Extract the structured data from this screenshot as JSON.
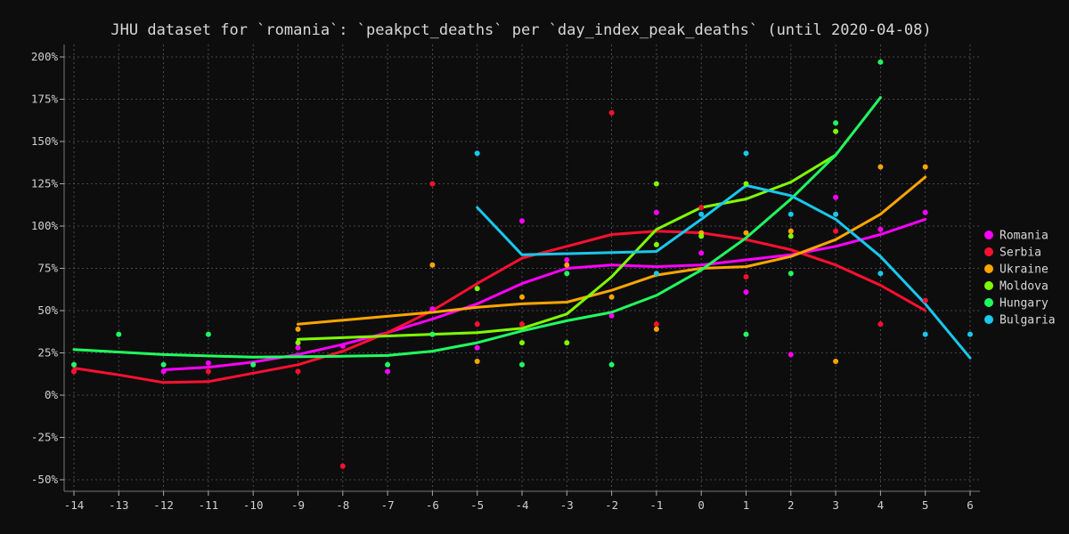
{
  "chart_data": {
    "type": "line",
    "title": "JHU dataset for `romania`: `peakpct_deaths` per `day_index_peak_deaths` (until 2020-04-08)",
    "xlabel": "",
    "ylabel": "",
    "xlim": [
      -14.2,
      6.2
    ],
    "ylim": [
      -55,
      205
    ],
    "x_ticks": [
      -14,
      -13,
      -12,
      -11,
      -10,
      -9,
      -8,
      -7,
      -6,
      -5,
      -4,
      -3,
      -2,
      -1,
      0,
      1,
      2,
      3,
      4,
      5,
      6
    ],
    "y_ticks": [
      -50,
      -25,
      0,
      25,
      50,
      75,
      100,
      125,
      150,
      175,
      200
    ],
    "y_tick_suffix": "%",
    "grid": true,
    "legend_position": "right",
    "series": [
      {
        "name": "Romania",
        "color": "#ff00ff",
        "points": [
          [
            -14,
            14
          ],
          [
            -12,
            14
          ],
          [
            -11,
            19
          ],
          [
            -9,
            28
          ],
          [
            -8,
            29
          ],
          [
            -7,
            14
          ],
          [
            -6,
            51
          ],
          [
            -5,
            28
          ],
          [
            -4,
            103
          ],
          [
            -3,
            80
          ],
          [
            -2,
            47
          ],
          [
            -1,
            108
          ],
          [
            0,
            84
          ],
          [
            1,
            61
          ],
          [
            2,
            24
          ],
          [
            3,
            117
          ],
          [
            4,
            98
          ],
          [
            5,
            108
          ]
        ],
        "line": [
          [
            -12,
            15
          ],
          [
            -11,
            16.5
          ],
          [
            -10,
            19.5
          ],
          [
            -9,
            24
          ],
          [
            -8,
            30
          ],
          [
            -7,
            37
          ],
          [
            -6,
            45
          ],
          [
            -5,
            54
          ],
          [
            -4,
            66
          ],
          [
            -3,
            75
          ],
          [
            -2,
            77
          ],
          [
            -1,
            76
          ],
          [
            0,
            77
          ],
          [
            1,
            80
          ],
          [
            2,
            83
          ],
          [
            3,
            88
          ],
          [
            4,
            95
          ],
          [
            5,
            104
          ]
        ]
      },
      {
        "name": "Serbia",
        "color": "#ff1030",
        "points": [
          [
            -14,
            14
          ],
          [
            -11,
            14
          ],
          [
            -9,
            14
          ],
          [
            -8,
            -42
          ],
          [
            -6,
            125
          ],
          [
            -5,
            42
          ],
          [
            -4,
            42
          ],
          [
            -2,
            167
          ],
          [
            -1,
            42
          ],
          [
            0,
            111
          ],
          [
            1,
            70
          ],
          [
            2,
            97
          ],
          [
            3,
            97
          ],
          [
            4,
            42
          ],
          [
            5,
            56
          ]
        ],
        "line": [
          [
            -14,
            16
          ],
          [
            -13,
            12
          ],
          [
            -12,
            7.5
          ],
          [
            -11,
            8
          ],
          [
            -10,
            13
          ],
          [
            -9,
            18
          ],
          [
            -8,
            26
          ],
          [
            -7,
            37
          ],
          [
            -6,
            50
          ],
          [
            -5,
            66
          ],
          [
            -4,
            81
          ],
          [
            -3,
            88
          ],
          [
            -2,
            95
          ],
          [
            -1,
            97
          ],
          [
            0,
            96
          ],
          [
            1,
            92
          ],
          [
            2,
            86
          ],
          [
            3,
            77
          ],
          [
            4,
            65
          ],
          [
            5,
            50
          ]
        ]
      },
      {
        "name": "Ukraine",
        "color": "#ffa500",
        "points": [
          [
            -9,
            39
          ],
          [
            -6,
            77
          ],
          [
            -5,
            20
          ],
          [
            -4,
            58
          ],
          [
            -3,
            77
          ],
          [
            -2,
            58
          ],
          [
            -1,
            39
          ],
          [
            0,
            96
          ],
          [
            1,
            96
          ],
          [
            2,
            97
          ],
          [
            3,
            20
          ],
          [
            4,
            135
          ],
          [
            5,
            135
          ]
        ],
        "line": [
          [
            -9,
            42
          ],
          [
            -6,
            49
          ],
          [
            -5,
            52
          ],
          [
            -4,
            54
          ],
          [
            -3,
            55
          ],
          [
            -2,
            62
          ],
          [
            -1,
            71
          ],
          [
            0,
            75
          ],
          [
            1,
            76
          ],
          [
            2,
            82
          ],
          [
            3,
            92
          ],
          [
            4,
            107
          ],
          [
            5,
            129
          ]
        ]
      },
      {
        "name": "Moldova",
        "color": "#7fff00",
        "points": [
          [
            -9,
            31
          ],
          [
            -6,
            36
          ],
          [
            -5,
            63
          ],
          [
            -4,
            31
          ],
          [
            -3,
            31
          ],
          [
            -1,
            125
          ],
          [
            -1,
            89
          ],
          [
            0,
            94
          ],
          [
            1,
            125
          ],
          [
            2,
            94
          ],
          [
            3,
            156
          ]
        ],
        "line": [
          [
            -9,
            33
          ],
          [
            -8,
            34
          ],
          [
            -7,
            35
          ],
          [
            -6,
            36
          ],
          [
            -5,
            37
          ],
          [
            -4,
            39.5
          ],
          [
            -3,
            48
          ],
          [
            -2,
            70
          ],
          [
            -1,
            98
          ],
          [
            0,
            111
          ],
          [
            1,
            116
          ],
          [
            2,
            126
          ],
          [
            3,
            142
          ]
        ]
      },
      {
        "name": "Hungary",
        "color": "#20ff60",
        "points": [
          [
            -14,
            18
          ],
          [
            -13,
            36
          ],
          [
            -12,
            18
          ],
          [
            -11,
            36
          ],
          [
            -10,
            18
          ],
          [
            -7,
            18
          ],
          [
            -6,
            36
          ],
          [
            -4,
            18
          ],
          [
            -3,
            72
          ],
          [
            -2,
            18
          ],
          [
            1,
            36
          ],
          [
            2,
            72
          ],
          [
            3,
            161
          ],
          [
            4,
            197
          ]
        ],
        "line": [
          [
            -14,
            27
          ],
          [
            -12,
            24
          ],
          [
            -10,
            22.5
          ],
          [
            -8,
            23
          ],
          [
            -7,
            23.5
          ],
          [
            -6,
            26
          ],
          [
            -5,
            31
          ],
          [
            -4,
            38
          ],
          [
            -3,
            44
          ],
          [
            -2,
            49
          ],
          [
            -1,
            59
          ],
          [
            0,
            74
          ],
          [
            1,
            93
          ],
          [
            2,
            116
          ],
          [
            3,
            142
          ],
          [
            4,
            176
          ]
        ]
      },
      {
        "name": "Bulgaria",
        "color": "#18c8ee",
        "points": [
          [
            -5,
            143
          ],
          [
            -1,
            72
          ],
          [
            0,
            107
          ],
          [
            1,
            143
          ],
          [
            2,
            107
          ],
          [
            3,
            107
          ],
          [
            4,
            72
          ],
          [
            5,
            36
          ],
          [
            6,
            36
          ]
        ],
        "line": [
          [
            -5,
            111
          ],
          [
            -4,
            83
          ],
          [
            -1,
            85
          ],
          [
            0,
            104
          ],
          [
            1,
            124
          ],
          [
            2,
            118
          ],
          [
            3,
            104
          ],
          [
            4,
            82
          ],
          [
            5,
            54
          ],
          [
            6,
            22
          ]
        ]
      }
    ]
  }
}
